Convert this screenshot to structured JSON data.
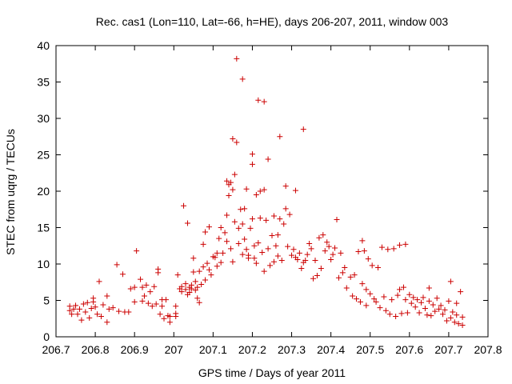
{
  "chart_data": {
    "type": "scatter",
    "title": "Rec. cas1 (Lon=110, Lat=-66, h=HE), days 206-207, 2011, window 003",
    "xlabel": "GPS time / Days of year 2011",
    "ylabel": "STEC from uqrg / TECUs",
    "xlim": [
      206.7,
      207.8
    ],
    "ylim": [
      0,
      40
    ],
    "x_ticks": [
      206.7,
      206.8,
      206.9,
      207.0,
      207.1,
      207.2,
      207.3,
      207.4,
      207.5,
      207.6,
      207.7,
      207.8
    ],
    "x_tick_labels": [
      "206.7",
      "206.8",
      "206.9",
      "207",
      "207.1",
      "207.2",
      "207.3",
      "207.4",
      "207.5",
      "207.6",
      "207.7",
      "207.8"
    ],
    "y_ticks": [
      0,
      5,
      10,
      15,
      20,
      25,
      30,
      35,
      40
    ],
    "y_tick_labels": [
      "0",
      "5",
      "10",
      "15",
      "20",
      "25",
      "30",
      "35",
      "40"
    ],
    "grid": false,
    "marker": "plus",
    "marker_color": "#cc0000",
    "points": [
      [
        206.735,
        4.2
      ],
      [
        206.735,
        3.6
      ],
      [
        206.74,
        3.1
      ],
      [
        206.745,
        3.8
      ],
      [
        206.75,
        4.3
      ],
      [
        206.755,
        3.1
      ],
      [
        206.76,
        3.8
      ],
      [
        206.765,
        2.3
      ],
      [
        206.77,
        4.5
      ],
      [
        206.775,
        3.4
      ],
      [
        206.78,
        4.7
      ],
      [
        206.785,
        2.6
      ],
      [
        206.79,
        3.9
      ],
      [
        206.795,
        5.3
      ],
      [
        206.795,
        4.8
      ],
      [
        206.8,
        4.1
      ],
      [
        206.805,
        3.1
      ],
      [
        206.81,
        7.6
      ],
      [
        206.815,
        2.8
      ],
      [
        206.82,
        4.4
      ],
      [
        206.83,
        2.0
      ],
      [
        206.83,
        5.6
      ],
      [
        206.835,
        3.8
      ],
      [
        206.845,
        4.0
      ],
      [
        206.855,
        9.9
      ],
      [
        206.86,
        3.5
      ],
      [
        206.87,
        8.6
      ],
      [
        206.875,
        3.4
      ],
      [
        206.885,
        3.4
      ],
      [
        206.89,
        6.6
      ],
      [
        206.9,
        6.8
      ],
      [
        206.9,
        4.8
      ],
      [
        206.905,
        11.8
      ],
      [
        206.915,
        7.9
      ],
      [
        206.92,
        6.8
      ],
      [
        206.92,
        4.9
      ],
      [
        206.925,
        5.6
      ],
      [
        206.93,
        7.1
      ],
      [
        206.935,
        4.6
      ],
      [
        206.94,
        6.2
      ],
      [
        206.945,
        4.2
      ],
      [
        206.95,
        6.9
      ],
      [
        206.955,
        4.5
      ],
      [
        206.96,
        9.3
      ],
      [
        206.96,
        8.8
      ],
      [
        206.965,
        3.1
      ],
      [
        206.97,
        5.1
      ],
      [
        206.97,
        4.2
      ],
      [
        206.975,
        2.5
      ],
      [
        206.98,
        5.1
      ],
      [
        206.985,
        2.9
      ],
      [
        206.99,
        2.8
      ],
      [
        206.99,
        2.0
      ],
      [
        207.005,
        4.2
      ],
      [
        207.005,
        3.2
      ],
      [
        207.005,
        2.8
      ],
      [
        207.01,
        8.5
      ],
      [
        207.015,
        6.6
      ],
      [
        207.02,
        6.2
      ],
      [
        207.02,
        6.9
      ],
      [
        207.025,
        18.0
      ],
      [
        207.03,
        6.5
      ],
      [
        207.03,
        7.3
      ],
      [
        207.035,
        5.8
      ],
      [
        207.035,
        15.6
      ],
      [
        207.04,
        6.1
      ],
      [
        207.04,
        6.8
      ],
      [
        207.045,
        7.1
      ],
      [
        207.045,
        6.6
      ],
      [
        207.05,
        10.8
      ],
      [
        207.05,
        8.9
      ],
      [
        207.055,
        7.6
      ],
      [
        207.055,
        6.4
      ],
      [
        207.06,
        6.8
      ],
      [
        207.06,
        5.3
      ],
      [
        207.065,
        4.7
      ],
      [
        207.065,
        9.0
      ],
      [
        207.07,
        7.2
      ],
      [
        207.075,
        12.7
      ],
      [
        207.075,
        9.6
      ],
      [
        207.08,
        14.4
      ],
      [
        207.08,
        7.8
      ],
      [
        207.085,
        10.1
      ],
      [
        207.09,
        15.1
      ],
      [
        207.09,
        9.2
      ],
      [
        207.095,
        8.5
      ],
      [
        207.1,
        11.0
      ],
      [
        207.105,
        10.9
      ],
      [
        207.11,
        11.5
      ],
      [
        207.11,
        9.7
      ],
      [
        207.115,
        13.5
      ],
      [
        207.12,
        15.0
      ],
      [
        207.12,
        10.2
      ],
      [
        207.125,
        11.5
      ],
      [
        207.13,
        14.3
      ],
      [
        207.135,
        21.4
      ],
      [
        207.135,
        16.7
      ],
      [
        207.135,
        13.1
      ],
      [
        207.14,
        20.9
      ],
      [
        207.14,
        19.4
      ],
      [
        207.145,
        21.2
      ],
      [
        207.145,
        12.1
      ],
      [
        207.15,
        20.2
      ],
      [
        207.15,
        27.2
      ],
      [
        207.15,
        10.3
      ],
      [
        207.155,
        22.3
      ],
      [
        207.155,
        15.8
      ],
      [
        207.16,
        38.2
      ],
      [
        207.16,
        26.7
      ],
      [
        207.165,
        14.9
      ],
      [
        207.165,
        12.8
      ],
      [
        207.17,
        17.5
      ],
      [
        207.175,
        35.4
      ],
      [
        207.175,
        15.5
      ],
      [
        207.175,
        11.3
      ],
      [
        207.18,
        17.6
      ],
      [
        207.18,
        13.4
      ],
      [
        207.185,
        20.3
      ],
      [
        207.185,
        12.0
      ],
      [
        207.19,
        11.2
      ],
      [
        207.19,
        10.8
      ],
      [
        207.195,
        14.9
      ],
      [
        207.2,
        23.7
      ],
      [
        207.2,
        25.1
      ],
      [
        207.2,
        16.2
      ],
      [
        207.205,
        12.5
      ],
      [
        207.205,
        10.8
      ],
      [
        207.21,
        19.5
      ],
      [
        207.21,
        10.1
      ],
      [
        207.215,
        32.5
      ],
      [
        207.215,
        12.9
      ],
      [
        207.22,
        20.0
      ],
      [
        207.22,
        16.3
      ],
      [
        207.225,
        11.6
      ],
      [
        207.23,
        32.3
      ],
      [
        207.23,
        20.2
      ],
      [
        207.23,
        9.0
      ],
      [
        207.235,
        16.0
      ],
      [
        207.24,
        12.1
      ],
      [
        207.24,
        24.4
      ],
      [
        207.245,
        9.8
      ],
      [
        207.25,
        13.9
      ],
      [
        207.255,
        16.6
      ],
      [
        207.255,
        10.3
      ],
      [
        207.26,
        12.5
      ],
      [
        207.265,
        11.1
      ],
      [
        207.265,
        14.0
      ],
      [
        207.27,
        27.5
      ],
      [
        207.27,
        16.2
      ],
      [
        207.275,
        10.5
      ],
      [
        207.28,
        15.5
      ],
      [
        207.285,
        17.6
      ],
      [
        207.285,
        20.7
      ],
      [
        207.29,
        12.4
      ],
      [
        207.295,
        16.8
      ],
      [
        207.3,
        11.2
      ],
      [
        207.305,
        12.0
      ],
      [
        207.31,
        20.1
      ],
      [
        207.31,
        10.9
      ],
      [
        207.315,
        10.6
      ],
      [
        207.32,
        11.5
      ],
      [
        207.325,
        9.4
      ],
      [
        207.33,
        28.5
      ],
      [
        207.33,
        10.2
      ],
      [
        207.335,
        10.5
      ],
      [
        207.34,
        11.3
      ],
      [
        207.345,
        12.8
      ],
      [
        207.35,
        12.1
      ],
      [
        207.355,
        8.0
      ],
      [
        207.36,
        10.5
      ],
      [
        207.365,
        8.4
      ],
      [
        207.37,
        13.6
      ],
      [
        207.375,
        9.4
      ],
      [
        207.38,
        14.0
      ],
      [
        207.385,
        11.8
      ],
      [
        207.39,
        13.0
      ],
      [
        207.395,
        12.4
      ],
      [
        207.4,
        10.6
      ],
      [
        207.405,
        11.3
      ],
      [
        207.41,
        12.2
      ],
      [
        207.415,
        16.1
      ],
      [
        207.42,
        8.1
      ],
      [
        207.425,
        11.5
      ],
      [
        207.43,
        8.8
      ],
      [
        207.435,
        9.5
      ],
      [
        207.44,
        6.7
      ],
      [
        207.45,
        8.2
      ],
      [
        207.455,
        5.6
      ],
      [
        207.46,
        8.5
      ],
      [
        207.465,
        5.2
      ],
      [
        207.47,
        11.7
      ],
      [
        207.475,
        4.8
      ],
      [
        207.48,
        13.2
      ],
      [
        207.48,
        7.3
      ],
      [
        207.485,
        11.8
      ],
      [
        207.49,
        6.5
      ],
      [
        207.49,
        4.3
      ],
      [
        207.495,
        10.7
      ],
      [
        207.5,
        5.9
      ],
      [
        207.505,
        9.8
      ],
      [
        207.51,
        5.2
      ],
      [
        207.515,
        4.8
      ],
      [
        207.52,
        9.5
      ],
      [
        207.525,
        4.0
      ],
      [
        207.53,
        12.3
      ],
      [
        207.535,
        5.5
      ],
      [
        207.54,
        3.6
      ],
      [
        207.545,
        12.0
      ],
      [
        207.55,
        3.1
      ],
      [
        207.555,
        5.1
      ],
      [
        207.56,
        12.1
      ],
      [
        207.565,
        2.8
      ],
      [
        207.57,
        5.7
      ],
      [
        207.575,
        12.6
      ],
      [
        207.575,
        6.5
      ],
      [
        207.58,
        3.2
      ],
      [
        207.585,
        6.8
      ],
      [
        207.59,
        12.7
      ],
      [
        207.59,
        5.1
      ],
      [
        207.595,
        3.3
      ],
      [
        207.6,
        5.8
      ],
      [
        207.605,
        4.6
      ],
      [
        207.61,
        5.4
      ],
      [
        207.615,
        4.1
      ],
      [
        207.62,
        5.1
      ],
      [
        207.625,
        3.3
      ],
      [
        207.63,
        4.7
      ],
      [
        207.635,
        5.4
      ],
      [
        207.64,
        3.9
      ],
      [
        207.645,
        3.0
      ],
      [
        207.65,
        6.7
      ],
      [
        207.65,
        4.9
      ],
      [
        207.655,
        2.9
      ],
      [
        207.66,
        4.4
      ],
      [
        207.665,
        3.5
      ],
      [
        207.67,
        5.3
      ],
      [
        207.675,
        3.8
      ],
      [
        207.68,
        4.3
      ],
      [
        207.685,
        3.1
      ],
      [
        207.69,
        3.7
      ],
      [
        207.695,
        2.2
      ],
      [
        207.7,
        4.9
      ],
      [
        207.705,
        7.6
      ],
      [
        207.705,
        2.6
      ],
      [
        207.71,
        3.4
      ],
      [
        207.715,
        2.0
      ],
      [
        207.72,
        4.6
      ],
      [
        207.72,
        3.0
      ],
      [
        207.725,
        1.8
      ],
      [
        207.73,
        6.2
      ],
      [
        207.735,
        2.7
      ],
      [
        207.735,
        1.6
      ]
    ]
  }
}
